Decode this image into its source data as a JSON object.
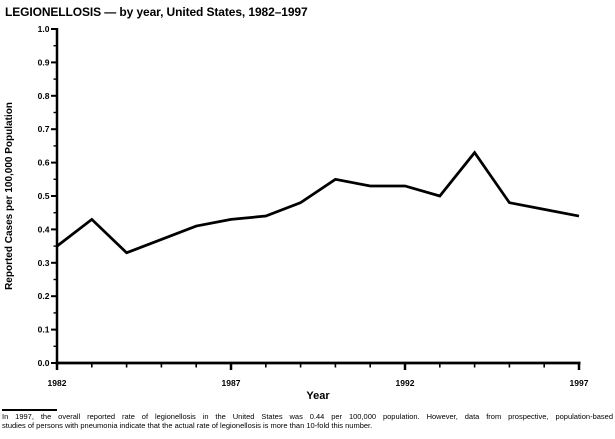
{
  "title": "LEGIONELLOSIS — by year, United States, 1982–1997",
  "chart_data": {
    "type": "line",
    "title": "LEGIONELLOSIS — by year, United States, 1982–1997",
    "x": [
      1982,
      1983,
      1984,
      1985,
      1986,
      1987,
      1988,
      1989,
      1990,
      1991,
      1992,
      1993,
      1994,
      1995,
      1996,
      1997
    ],
    "values": [
      0.35,
      0.43,
      0.33,
      0.37,
      0.41,
      0.43,
      0.44,
      0.48,
      0.55,
      0.53,
      0.53,
      0.5,
      0.63,
      0.48,
      0.46,
      0.44
    ],
    "xlabel": "Year",
    "ylabel": "Reported Cases per 100,000 Population",
    "ylim": [
      0.0,
      1.0
    ],
    "ytick_step": 0.1,
    "ytick_minor_step": 0.05,
    "ytick_labels": [
      "0.0",
      "0.1",
      "0.2",
      "0.3",
      "0.4",
      "0.5",
      "0.6",
      "0.7",
      "0.8",
      "0.9",
      "1.0"
    ],
    "xtick_labeled": [
      1982,
      1987,
      1992,
      1997
    ],
    "grid": false,
    "legend": false,
    "line_color": "#000000",
    "background": "#ffffff"
  },
  "footnote": {
    "lines": [
      "In 1997, the overall reported rate of legionellosis in the United States was 0.44 per 100,000 population. However, data from prospective, population-based",
      "studies of persons with pneumonia indicate that the actual rate of legionellosis is more than 10-fold this number."
    ]
  }
}
